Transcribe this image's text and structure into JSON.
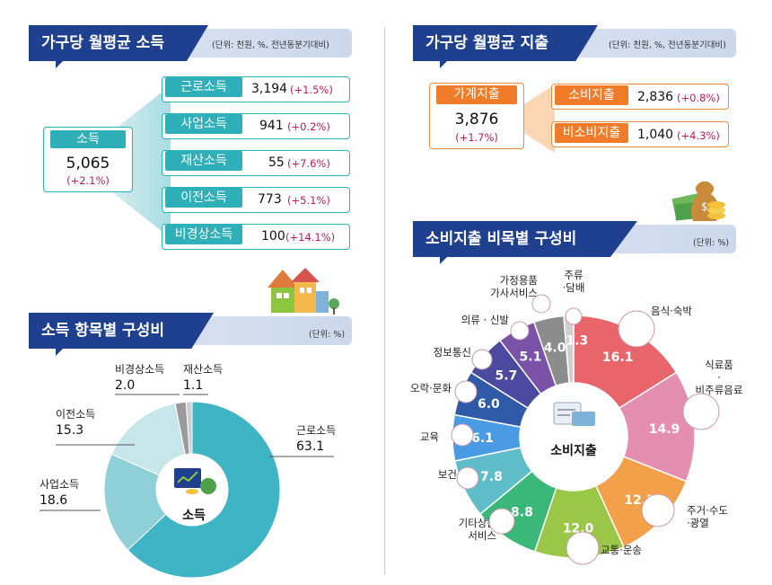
{
  "income": {
    "title": "가구당 월평균 소득",
    "unit": "(단위: 천원, %, 전년동분기대비)",
    "total": {
      "label": "소득",
      "value": "5,065",
      "change": "(+2.1%)"
    },
    "items": [
      {
        "label": "근로소득",
        "value": "3,194",
        "change": "(+1.5%)"
      },
      {
        "label": "사업소득",
        "value": "941",
        "change": "(+0.2%)"
      },
      {
        "label": "재산소득",
        "value": "55",
        "change": "(+7.6%)"
      },
      {
        "label": "이전소득",
        "value": "773",
        "change": "(+5.1%)"
      },
      {
        "label": "비경상소득",
        "value": "100",
        "change": "(+14.1%)"
      }
    ]
  },
  "expenditure": {
    "title": "가구당 월평균 지출",
    "unit": "(단위: 천원, %, 전년동분기대비)",
    "total": {
      "label": "가계지출",
      "value": "3,876",
      "change": "(+1.7%)"
    },
    "items": [
      {
        "label": "소비지출",
        "value": "2,836",
        "change": "(+0.8%)"
      },
      {
        "label": "비소비지출",
        "value": "1,040",
        "change": "(+4.3%)"
      }
    ]
  },
  "income_composition": {
    "title": "소득 항목별 구성비",
    "unit": "(단위: %)",
    "center_label": "소득"
  },
  "consumption_composition": {
    "title": "소비지출 비목별 구성비",
    "unit": "(단위: %)",
    "center_label": "소비지출"
  },
  "colors": {
    "navy": "#1f3f8f",
    "teal": "#2fb0b8",
    "orange": "#f07c2a",
    "magenta": "#c2185b"
  },
  "chart_data": [
    {
      "type": "pie",
      "title": "소득 항목별 구성비",
      "categories": [
        "근로소득",
        "사업소득",
        "이전소득",
        "비경상소득",
        "재산소득"
      ],
      "values": [
        63.1,
        18.6,
        15.3,
        2.0,
        1.1
      ],
      "value_labels": [
        "63.1",
        "18.6",
        "15.3",
        "2.0",
        "1.1"
      ],
      "colors": [
        "#3fb4c4",
        "#8fd0d8",
        "#c7e6ea",
        "#9a9a9a",
        "#cfcfcf"
      ]
    },
    {
      "type": "pie",
      "title": "소비지출 비목별 구성비",
      "categories": [
        "음식·숙박",
        "식료품·비주류음료",
        "주거·수도·광열",
        "교통·운송",
        "기타상품서비스",
        "보건",
        "교육",
        "오락·문화",
        "정보통신",
        "의류·신발",
        "가정용품가사서비스",
        "주류·담배"
      ],
      "values": [
        16.1,
        14.9,
        12.2,
        12.0,
        8.8,
        7.8,
        6.1,
        6.0,
        5.7,
        5.1,
        4.0,
        1.3
      ],
      "value_labels": [
        "16.1",
        "14.9",
        "12.2",
        "12.0",
        "8.8",
        "7.8",
        "6.1",
        "6.0",
        "5.7",
        "5.1",
        "4.0",
        "1.3"
      ],
      "colors": [
        "#e8656b",
        "#e58fb0",
        "#f2a14a",
        "#9bc748",
        "#3cb77a",
        "#5fbcc9",
        "#4a9be3",
        "#2e5aa8",
        "#4b4aa0",
        "#7a53a8",
        "#8c8c8c",
        "#cfcfcf"
      ],
      "display_labels": [
        [
          "음식·숙박"
        ],
        [
          "식료품",
          "·",
          "비주류음료"
        ],
        [
          "주거·수도",
          "·광열"
        ],
        [
          "교통·운송"
        ],
        [
          "기타상품",
          "서비스"
        ],
        [
          "보건"
        ],
        [
          "교육"
        ],
        [
          "오락·문화"
        ],
        [
          "정보통신"
        ],
        [
          "의류 · 신발"
        ],
        [
          "가정용품",
          "가사서비스"
        ],
        [
          "주류",
          "·담배"
        ]
      ]
    }
  ]
}
